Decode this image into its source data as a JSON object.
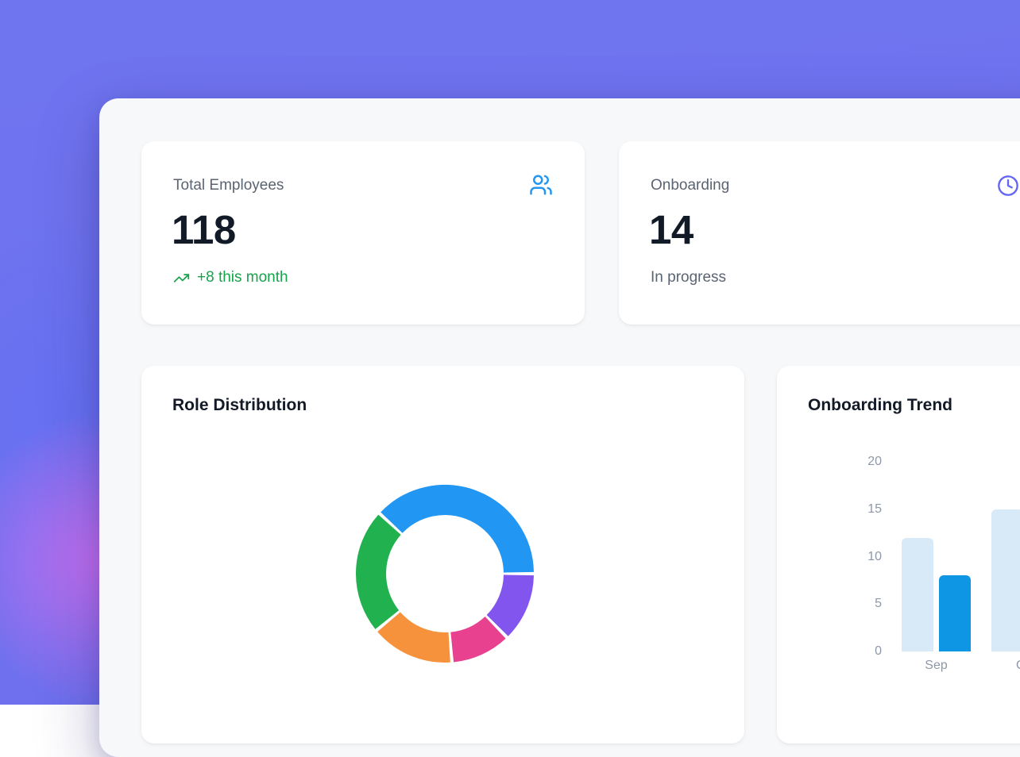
{
  "background": {
    "base_color": "#6e72ee",
    "glow_color": "#d86eee"
  },
  "panel": {
    "bg_color": "#f7f8fa"
  },
  "stats": [
    {
      "label": "Total Employees",
      "value": "118",
      "sub": "+8 this month",
      "sub_color": "#16a34a",
      "icon": "users-icon",
      "icon_color": "#2196f3",
      "trend": "up"
    },
    {
      "label": "Onboarding",
      "value": "14",
      "sub": "In progress",
      "sub_color": "#5b6472",
      "icon": "clock-icon",
      "icon_color": "#6366f1"
    }
  ],
  "chart_data": [
    {
      "type": "pie",
      "shape": "donut",
      "title": "Role Distribution",
      "total": 118,
      "start_angle_deg": 0,
      "direction": "counterclockwise",
      "segments": [
        {
          "color": "#2196f3",
          "value": 45
        },
        {
          "color": "#21b14e",
          "value": 27
        },
        {
          "color": "#f7923c",
          "value": 18
        },
        {
          "color": "#e8418f",
          "value": 13
        },
        {
          "color": "#8355ef",
          "value": 15
        }
      ]
    },
    {
      "type": "bar",
      "title": "Onboarding Trend",
      "categories": [
        "Sep",
        "Oct"
      ],
      "series": [
        {
          "name": "series-light",
          "color": "#d8eaf8",
          "values": [
            12,
            15
          ]
        },
        {
          "name": "series-dark",
          "color": "#0e96e4",
          "values": [
            8,
            null
          ]
        }
      ],
      "ylim": [
        0,
        20
      ],
      "yticks": [
        0,
        5,
        10,
        15,
        20
      ],
      "grid": false,
      "legend": false
    }
  ]
}
